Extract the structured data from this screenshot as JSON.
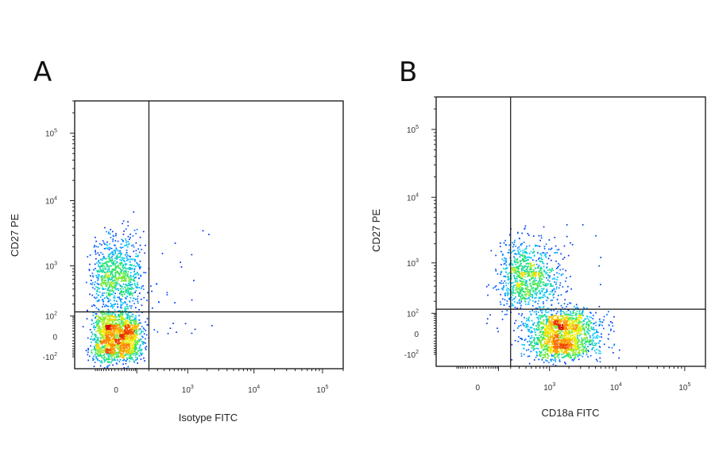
{
  "chart_data": [
    {
      "type": "scatter",
      "panel": "A",
      "xlabel": "Isotype FITC",
      "ylabel": "CD27 PE",
      "x_scale": "biexponential",
      "y_scale": "biexponential",
      "x_ticks": [
        {
          "value": 0,
          "base": "0",
          "exp": ""
        },
        {
          "value": 1000,
          "base": "10",
          "exp": "3"
        },
        {
          "value": 10000,
          "base": "10",
          "exp": "4"
        },
        {
          "value": 100000,
          "base": "10",
          "exp": "5"
        }
      ],
      "y_ticks": [
        {
          "value": -100,
          "base": "-10",
          "exp": "2"
        },
        {
          "value": 0,
          "base": "0",
          "exp": ""
        },
        {
          "value": 100,
          "base": "10",
          "exp": "2"
        },
        {
          "value": 1000,
          "base": "10",
          "exp": "3"
        },
        {
          "value": 10000,
          "base": "10",
          "exp": "4"
        },
        {
          "value": 100000,
          "base": "10",
          "exp": "5"
        }
      ],
      "xlim": [
        -300,
        200000
      ],
      "ylim": [
        -200,
        300000
      ],
      "gate_x": 200,
      "gate_y": 130,
      "populations": [
        {
          "x": 0,
          "y": 0,
          "spread_x": 60,
          "spread_y": 60,
          "density": "high"
        },
        {
          "x": 0,
          "y": 700,
          "spread_x": 60,
          "spread_y": 1500,
          "density": "medium"
        }
      ],
      "grid": false
    },
    {
      "type": "scatter",
      "panel": "B",
      "xlabel": "CD18a FITC",
      "ylabel": "CD27 PE",
      "x_scale": "biexponential",
      "y_scale": "biexponential",
      "x_ticks": [
        {
          "value": 0,
          "base": "0",
          "exp": ""
        },
        {
          "value": 1000,
          "base": "10",
          "exp": "3"
        },
        {
          "value": 10000,
          "base": "10",
          "exp": "4"
        },
        {
          "value": 100000,
          "base": "10",
          "exp": "5"
        }
      ],
      "y_ticks": [
        {
          "value": -100,
          "base": "-10",
          "exp": "2"
        },
        {
          "value": 0,
          "base": "0",
          "exp": ""
        },
        {
          "value": 100,
          "base": "10",
          "exp": "2"
        },
        {
          "value": 1000,
          "base": "10",
          "exp": "3"
        },
        {
          "value": 10000,
          "base": "10",
          "exp": "4"
        },
        {
          "value": 100000,
          "base": "10",
          "exp": "5"
        }
      ],
      "xlim": [
        -300,
        200000
      ],
      "ylim": [
        -200,
        300000
      ],
      "gate_x": 200,
      "gate_y": 130,
      "populations": [
        {
          "x": 1500,
          "y": 0,
          "spread_x": 1200,
          "spread_y": 60,
          "density": "high"
        },
        {
          "x": 400,
          "y": 600,
          "spread_x": 300,
          "spread_y": 900,
          "density": "medium"
        }
      ],
      "grid": false
    }
  ]
}
